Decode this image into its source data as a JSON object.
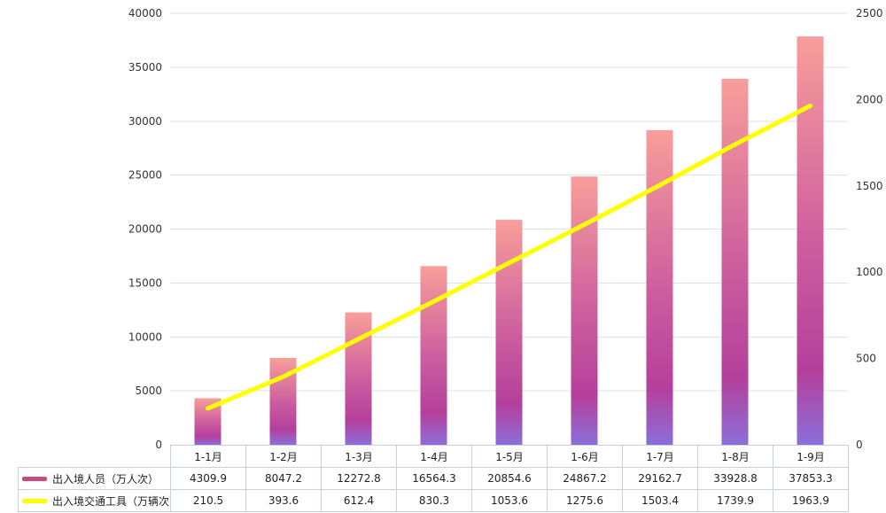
{
  "chart_data": {
    "type": "bar",
    "title": "",
    "categories": [
      "1-1月",
      "1-2月",
      "1-3月",
      "1-4月",
      "1-5月",
      "1-6月",
      "1-7月",
      "1-8月",
      "1-9月"
    ],
    "series": [
      {
        "name": "出入境人员（万人次）",
        "type": "bar",
        "y_axis": "left",
        "values": [
          4309.9,
          8047.2,
          12272.8,
          16564.3,
          20854.6,
          24867.2,
          29162.7,
          33928.8,
          37853.3
        ],
        "marker_color": "#c8497b",
        "bar_gradient": [
          {
            "offset": "0%",
            "color": "#f89e9a"
          },
          {
            "offset": "50%",
            "color": "#cd5f9e"
          },
          {
            "offset": "82%",
            "color": "#b43f9c"
          },
          {
            "offset": "100%",
            "color": "#8b6fd9"
          }
        ]
      },
      {
        "name": "出入境交通工具（万辆次）",
        "type": "line",
        "y_axis": "right",
        "values": [
          210.5,
          393.6,
          612.4,
          830.3,
          1053.6,
          1275.6,
          1503.4,
          1739.9,
          1963.9
        ],
        "color": "#ffff00",
        "line_width": 5,
        "marker_color": "#ffff00"
      }
    ],
    "left_axis": {
      "min": 0,
      "max": 40000,
      "step": 5000,
      "tick_labels": [
        "0",
        "5000",
        "10000",
        "15000",
        "20000",
        "25000",
        "30000",
        "35000",
        "40000"
      ]
    },
    "right_axis": {
      "min": 0,
      "max": 2500,
      "step": 500,
      "tick_labels": [
        "0",
        "500",
        "1000",
        "1500",
        "2000",
        "2500"
      ]
    },
    "grid": "horizontal-only",
    "legend_position": "bottom-table"
  },
  "colors": {
    "background": "#ffffff",
    "gridline": "#dce2ee",
    "table_border": "#c9d0dd",
    "axis_text": "#333333",
    "table_text": "#222222",
    "line": "#ffff00",
    "legend_bar_marker": "#c8497b",
    "legend_line_marker": "#ffff00"
  }
}
